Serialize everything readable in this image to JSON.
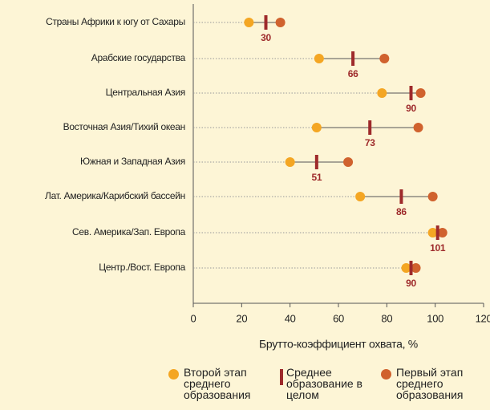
{
  "chart_data": {
    "type": "dumbbell",
    "categories": [
      "Страны Африки к югу от Сахары",
      "Арабские государства",
      "Центральная Азия",
      "Восточная Азия/Тихий океан",
      "Южная и Западная Азия",
      "Лат. Америка/Карибский бассейн",
      "Сев. Америка/Зап. Европа",
      "Центр./Вост. Европа"
    ],
    "series": [
      {
        "name": "Второй этап среднего образования",
        "color": "#f4a623",
        "marker": "circle",
        "values": [
          23,
          52,
          78,
          51,
          40,
          69,
          99,
          88
        ]
      },
      {
        "name": "Среднее образование в целом",
        "color": "#9e2a2b",
        "marker": "bar",
        "values": [
          30,
          66,
          90,
          73,
          51,
          86,
          101,
          90
        ]
      },
      {
        "name": "Первый этап среднего образования",
        "color": "#d0622e",
        "marker": "circle",
        "values": [
          36,
          79,
          94,
          93,
          64,
          99,
          103,
          92
        ]
      }
    ],
    "xlabel": "Брутто-коэффициент охвата, %",
    "xlim": [
      0,
      120
    ],
    "xticks": [
      0,
      20,
      40,
      60,
      80,
      100,
      120
    ]
  }
}
